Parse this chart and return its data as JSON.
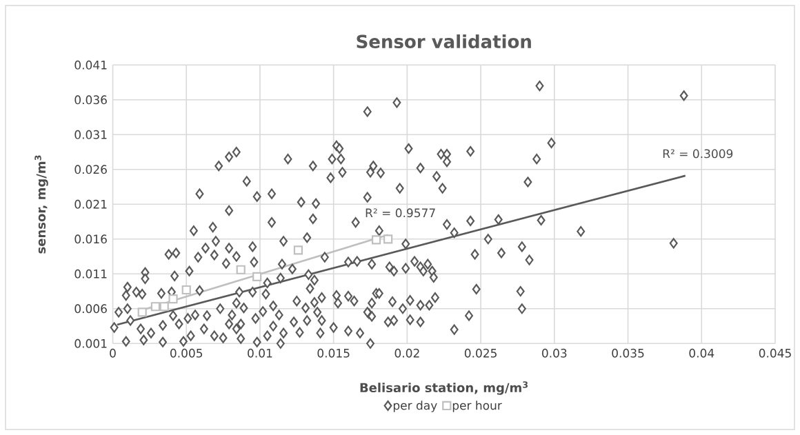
{
  "chart_data": {
    "type": "scatter",
    "title": "Sensor validation",
    "xlabel": "Belisario station, mg/m$^{3}$",
    "ylabel": "sensor, mg/m$^{3}$",
    "xlim": [
      0,
      0.045
    ],
    "xticks": [
      0,
      0.005,
      0.01,
      0.015,
      0.02,
      0.025,
      0.03,
      0.035,
      0.04,
      0.045
    ],
    "ylim": [
      0.001,
      0.041
    ],
    "yticks": [
      0.001,
      0.006,
      0.011,
      0.016,
      0.021,
      0.026,
      0.031,
      0.036,
      0.041
    ],
    "grid": true,
    "legend": "bottom",
    "annotations": [
      {
        "text": "R² = 0.3009",
        "x": 0.0389,
        "y": 0.0251
      },
      {
        "text": "R² = 0.9577",
        "x": 0.0187,
        "y": 0.0166
      }
    ],
    "series": [
      {
        "name": "per day",
        "type": "scatter",
        "marker": "diamond",
        "color": "#595959",
        "x": [
          0.0173,
          0.0152,
          0.0154,
          0.0149,
          0.0155,
          0.0119,
          0.0136,
          0.0084,
          0.0079,
          0.0072,
          0.0148,
          0.0156,
          0.0175,
          0.0177,
          0.0091,
          0.0059,
          0.0098,
          0.0108,
          0.0128,
          0.0138,
          0.0173,
          0.0079,
          0.0108,
          0.0136,
          0.0165,
          0.0055,
          0.0068,
          0.029,
          0.0193,
          0.0298,
          0.0201,
          0.0243,
          0.0223,
          0.0227,
          0.0227,
          0.0288,
          0.0209,
          0.0182,
          0.022,
          0.0195,
          0.0224,
          0.0282,
          0.0227,
          0.0243,
          0.0262,
          0.0291,
          0.0232,
          0.0318,
          0.0181,
          0.0199,
          0.0255,
          0.0246,
          0.0264,
          0.0278,
          0.0283,
          0.0176,
          0.0188,
          0.0191,
          0.0199,
          0.0205,
          0.0209,
          0.0214,
          0.0211,
          0.0217,
          0.0218,
          0.0247,
          0.0277,
          0.0278,
          0.0179,
          0.0181,
          0.0176,
          0.019,
          0.0197,
          0.0202,
          0.0209,
          0.0215,
          0.0219,
          0.0174,
          0.0176,
          0.0187,
          0.0191,
          0.0202,
          0.0209,
          0.0242,
          0.0232,
          0.0175,
          0.0388,
          0.0381,
          0.0038,
          0.0043,
          0.0058,
          0.007,
          0.0063,
          0.0022,
          0.0022,
          0.0042,
          0.0052,
          0.0069,
          0.0079,
          0.0084,
          0.0077,
          0.001,
          0.0016,
          0.0009,
          0.002,
          0.0033,
          0.004,
          0.0059,
          0.0004,
          0.001,
          0.0001,
          0.0012,
          0.0019,
          0.0026,
          0.0009,
          0.0021,
          0.0034,
          0.0048,
          0.0034,
          0.0041,
          0.0045,
          0.0051,
          0.0056,
          0.0053,
          0.0062,
          0.0069,
          0.0075,
          0.0064,
          0.0073,
          0.0081,
          0.0079,
          0.0084,
          0.0084,
          0.0116,
          0.0132,
          0.0095,
          0.0096,
          0.0144,
          0.016,
          0.0166,
          0.0115,
          0.0122,
          0.0133,
          0.0137,
          0.0114,
          0.0134,
          0.0105,
          0.0086,
          0.0095,
          0.0104,
          0.0109,
          0.0125,
          0.0131,
          0.0137,
          0.0142,
          0.0152,
          0.016,
          0.0164,
          0.0153,
          0.0173,
          0.0089,
          0.0087,
          0.0097,
          0.0102,
          0.0113,
          0.0109,
          0.0123,
          0.0132,
          0.0139,
          0.0142,
          0.015,
          0.016,
          0.0168,
          0.0105,
          0.0116,
          0.0127,
          0.0141,
          0.0098,
          0.0114,
          0.0087
        ],
        "values": [
          0.0343,
          0.0294,
          0.029,
          0.0275,
          0.0275,
          0.0275,
          0.0265,
          0.0285,
          0.0278,
          0.0265,
          0.0248,
          0.0256,
          0.0256,
          0.0265,
          0.0243,
          0.0225,
          0.0221,
          0.0225,
          0.0213,
          0.0211,
          0.022,
          0.0201,
          0.0184,
          0.0189,
          0.0184,
          0.0172,
          0.0177,
          0.038,
          0.0356,
          0.0298,
          0.029,
          0.0286,
          0.0282,
          0.0282,
          0.0271,
          0.0275,
          0.0262,
          0.0255,
          0.025,
          0.0233,
          0.0233,
          0.0242,
          0.0181,
          0.0186,
          0.0188,
          0.0187,
          0.0169,
          0.0171,
          0.0172,
          0.0153,
          0.016,
          0.0138,
          0.014,
          0.0149,
          0.013,
          0.0124,
          0.012,
          0.0114,
          0.0118,
          0.0128,
          0.012,
          0.0124,
          0.0114,
          0.0114,
          0.0105,
          0.0088,
          0.0085,
          0.006,
          0.0082,
          0.0082,
          0.0068,
          0.007,
          0.006,
          0.0072,
          0.0065,
          0.0065,
          0.0076,
          0.0053,
          0.0049,
          0.0041,
          0.0043,
          0.0044,
          0.0041,
          0.005,
          0.003,
          0.001,
          0.0366,
          0.0154,
          0.0138,
          0.014,
          0.0134,
          0.0157,
          0.0147,
          0.0112,
          0.0103,
          0.0107,
          0.0114,
          0.0137,
          0.0147,
          0.0135,
          0.0125,
          0.0091,
          0.0084,
          0.0079,
          0.0081,
          0.0082,
          0.0084,
          0.0086,
          0.0055,
          0.006,
          0.0033,
          0.0043,
          0.0031,
          0.0025,
          0.0013,
          0.0015,
          0.0012,
          0.0013,
          0.0036,
          0.005,
          0.0038,
          0.0046,
          0.0051,
          0.0021,
          0.0031,
          0.0021,
          0.0018,
          0.005,
          0.006,
          0.0051,
          0.0038,
          0.0031,
          0.0068,
          0.0157,
          0.0162,
          0.0149,
          0.0127,
          0.0134,
          0.0127,
          0.0128,
          0.0124,
          0.0117,
          0.0109,
          0.0101,
          0.0104,
          0.0089,
          0.0097,
          0.0084,
          0.0084,
          0.0081,
          0.0064,
          0.0071,
          0.0061,
          0.0069,
          0.0076,
          0.0079,
          0.0078,
          0.0071,
          0.0068,
          0.0055,
          0.0061,
          0.0038,
          0.0046,
          0.0056,
          0.0051,
          0.0035,
          0.0041,
          0.0043,
          0.0055,
          0.0043,
          0.0033,
          0.0028,
          0.0025,
          0.0021,
          0.0025,
          0.0026,
          0.0025,
          0.0012,
          0.001,
          0.0017
        ]
      },
      {
        "name": "per hour",
        "type": "scatter",
        "marker": "square",
        "color": "#bfbfbf",
        "x": [
          0.002,
          0.0029,
          0.0035,
          0.0041,
          0.005,
          0.0087,
          0.0098,
          0.0126,
          0.0179,
          0.0187
        ],
        "values": [
          0.0055,
          0.0063,
          0.0063,
          0.0074,
          0.0087,
          0.0116,
          0.0106,
          0.0144,
          0.0159,
          0.016
        ]
      },
      {
        "type": "line",
        "marker": "none",
        "color": "#595959",
        "x": [
          0.0003,
          0.0389
        ],
        "values": [
          0.0037,
          0.0251
        ]
      },
      {
        "type": "line",
        "marker": "none",
        "color": "#bfbfbf",
        "x": [
          0.002,
          0.0187
        ],
        "values": [
          0.0058,
          0.0166
        ]
      }
    ]
  }
}
